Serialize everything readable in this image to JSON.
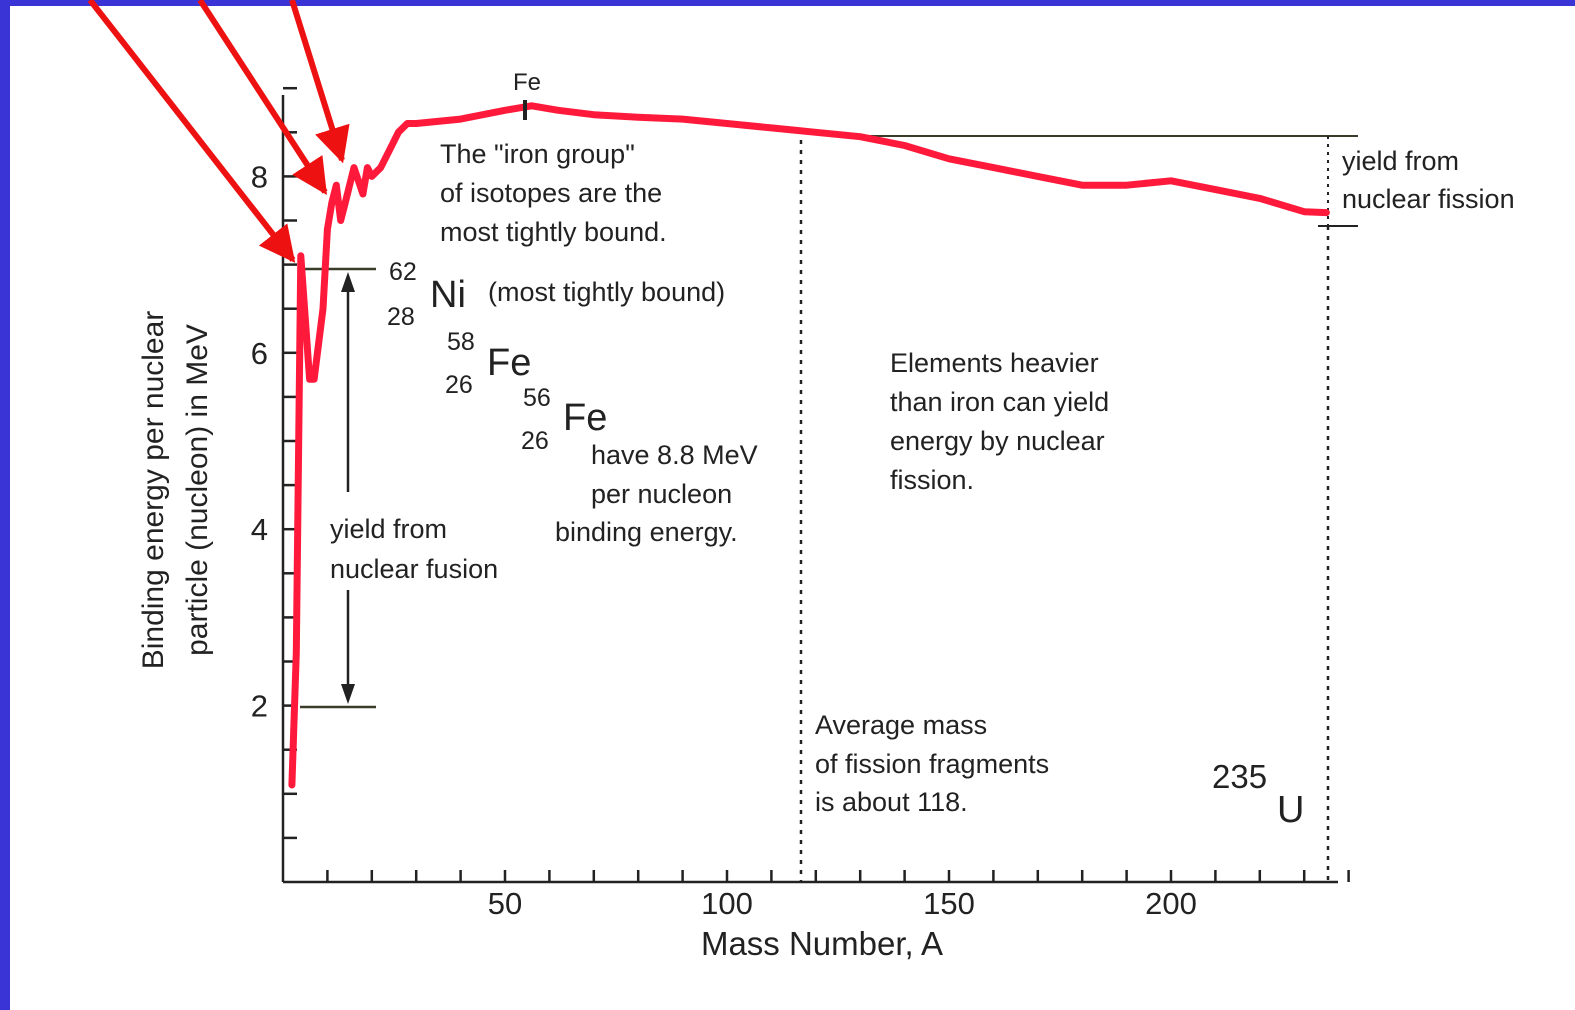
{
  "colors": {
    "frame": "#3a34d6",
    "curve": "#ff1a3c",
    "arrows": "#ee1111",
    "axis": "#222222"
  },
  "chart_data": {
    "type": "line",
    "title": "",
    "xlabel": "Mass Number, A",
    "ylabel_line1": "Binding energy per nuclear",
    "ylabel_line2": "particle (nucleon) in MeV",
    "xlim": [
      0,
      240
    ],
    "ylim": [
      0,
      9
    ],
    "x_ticks": [
      50,
      100,
      150,
      200
    ],
    "y_ticks": [
      2,
      4,
      6,
      8
    ],
    "series": [
      {
        "x": [
          2,
          3,
          4,
          6,
          7,
          9,
          10,
          11,
          12,
          13,
          14,
          15,
          16,
          18,
          19,
          20,
          22,
          24,
          26,
          28,
          30,
          40,
          50,
          56,
          62,
          70,
          80,
          90,
          100,
          110,
          120,
          130,
          140,
          150,
          160,
          170,
          180,
          190,
          200,
          210,
          220,
          230,
          235
        ],
        "y": [
          1.1,
          2.6,
          7.1,
          5.7,
          5.7,
          6.5,
          7.4,
          7.7,
          7.9,
          7.5,
          7.7,
          7.9,
          8.1,
          7.8,
          8.1,
          8.0,
          8.1,
          8.3,
          8.5,
          8.6,
          8.6,
          8.65,
          8.75,
          8.8,
          8.75,
          8.7,
          8.67,
          8.65,
          8.6,
          8.55,
          8.5,
          8.45,
          8.35,
          8.2,
          8.1,
          8.0,
          7.9,
          7.9,
          7.95,
          7.85,
          7.75,
          7.6,
          7.59
        ]
      }
    ],
    "annotations": {
      "fe_peak": "Fe",
      "iron_group": [
        "The \"iron group\"",
        "of isotopes are the",
        "most tightly bound."
      ],
      "ni_mass": "62",
      "ni_z": "28",
      "ni_symbol": "Ni",
      "ni_note": "(most tightly bound)",
      "fe58_mass": "58",
      "fe58_z": "26",
      "fe58_symbol": "Fe",
      "fe56_mass": "56",
      "fe56_z": "26",
      "fe56_symbol": "Fe",
      "fe56_note": [
        "have 8.8 MeV",
        "per nucleon",
        "binding energy."
      ],
      "heavier": [
        "Elements heavier",
        "than iron can yield",
        "energy by nuclear",
        "fission."
      ],
      "fusion": [
        "yield from",
        "nuclear fusion"
      ],
      "fission": [
        "yield from",
        "nuclear fission"
      ],
      "avg_mass": [
        "Average mass",
        "of fission fragments",
        "is about 118."
      ],
      "u_mass": "235",
      "u_symbol": "U"
    }
  }
}
